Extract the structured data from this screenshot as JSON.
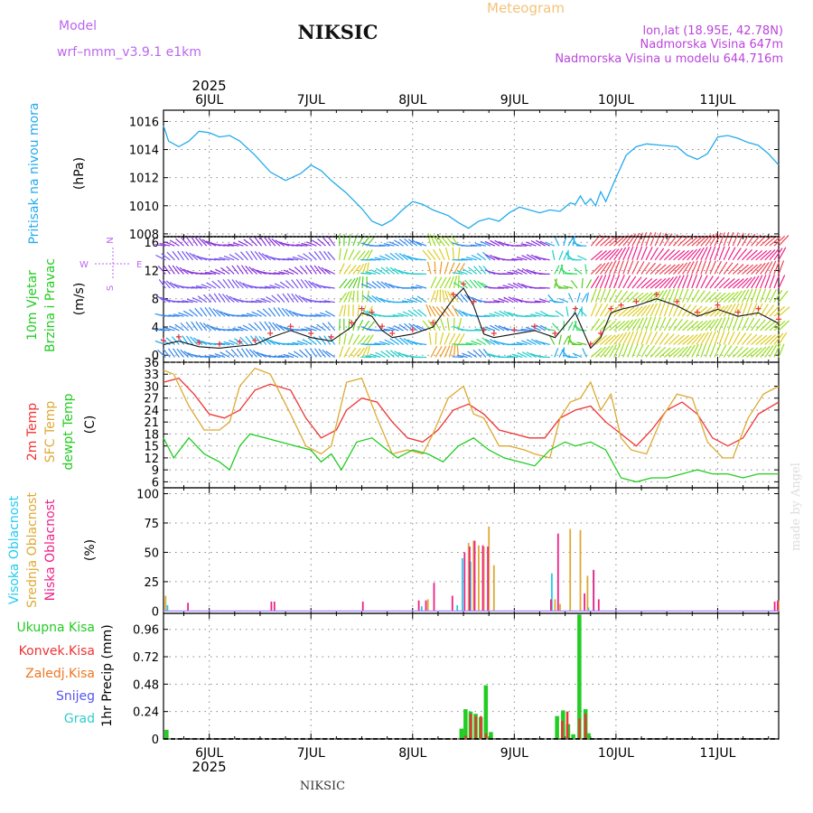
{
  "header": {
    "model_label": "Model",
    "model_name": "wrf–nmm_v3.9.1  e1km",
    "station": "NIKSIC",
    "product": "Meteogram",
    "coords": "lon,lat (18.95E, 42.78N)",
    "elevation": "Nadmorska Visina 647m",
    "model_elevation": "Nadmorska Visina u modelu 644.716m"
  },
  "time_axis": {
    "year": "2025",
    "day_labels": [
      "6JUL",
      "7JUL",
      "8JUL",
      "9JUL",
      "10JUL",
      "11JUL"
    ],
    "x_range_days": [
      0.55,
      6.6
    ]
  },
  "footer": {
    "station": "NIKSIC",
    "watermark": "made by Angel"
  },
  "colors": {
    "pressure": "#22aaee",
    "temp2m": "#ee3333",
    "sfc": "#ddaa33",
    "dewpt": "#22cc22",
    "high_cloud": "#22ccee",
    "mid_cloud": "#ddaa33",
    "low_cloud": "#ee2288",
    "total_precip": "#22cc22",
    "convective": "#ee3333",
    "frozen": "#ee7722",
    "snow": "#5555ee",
    "hail": "#33cccc"
  },
  "chart_data": [
    {
      "id": "pressure",
      "type": "line",
      "title": "",
      "labels": [
        "Pritisak na nivou mora"
      ],
      "unit": "(hPa)",
      "ylim": [
        1007.8,
        1016.8
      ],
      "yticks": [
        1008,
        1010,
        1012,
        1014,
        1016
      ],
      "grid": true,
      "series": [
        {
          "x": [
            0.55,
            0.6,
            0.7,
            0.8,
            0.9,
            1.0,
            1.1,
            1.2,
            1.3,
            1.45,
            1.6,
            1.75,
            1.9,
            2.0,
            2.1,
            2.2,
            2.35,
            2.5,
            2.6,
            2.7,
            2.8,
            2.9,
            3.0,
            3.1,
            3.2,
            3.35,
            3.45,
            3.55,
            3.65,
            3.75,
            3.85,
            3.95,
            4.05,
            4.15,
            4.25,
            4.35,
            4.45,
            4.55,
            4.6,
            4.65,
            4.7,
            4.75,
            4.8,
            4.85,
            4.9,
            5.0,
            5.1,
            5.2,
            5.3,
            5.45,
            5.6,
            5.7,
            5.8,
            5.9,
            6.0,
            6.1,
            6.2,
            6.3,
            6.4,
            6.5,
            6.6
          ],
          "y": [
            1015.7,
            1014.6,
            1014.2,
            1014.6,
            1015.3,
            1015.2,
            1014.9,
            1015.0,
            1014.6,
            1013.6,
            1012.4,
            1011.8,
            1012.3,
            1012.9,
            1012.5,
            1011.8,
            1010.9,
            1009.8,
            1008.9,
            1008.6,
            1009.0,
            1009.7,
            1010.3,
            1010.1,
            1009.7,
            1009.3,
            1008.8,
            1008.4,
            1008.9,
            1009.1,
            1008.9,
            1009.5,
            1009.9,
            1009.7,
            1009.5,
            1009.7,
            1009.6,
            1010.2,
            1010.1,
            1010.7,
            1010.1,
            1010.5,
            1010.0,
            1011.0,
            1010.3,
            1012.0,
            1013.6,
            1014.2,
            1014.4,
            1014.3,
            1014.2,
            1013.6,
            1013.3,
            1013.7,
            1014.9,
            1015.0,
            1014.8,
            1014.5,
            1014.3,
            1013.7,
            1012.9
          ]
        }
      ]
    },
    {
      "id": "wind",
      "type": "line",
      "title": "",
      "labels": [
        "10m Vjetar",
        "Brzina i Pravac"
      ],
      "unit": "(m/s)",
      "compass": {
        "north": "N",
        "west": "W",
        "east": "E",
        "south": "S"
      },
      "ylim": [
        -1,
        16.8
      ],
      "yticks": [
        0,
        4,
        8,
        12,
        16
      ],
      "yticklabels": [
        "0",
        "4",
        "8",
        "12",
        "16"
      ],
      "grid": true,
      "barb_levels": [
        15.5,
        13.5,
        11.5,
        9.5,
        7.5,
        5.5,
        3.5,
        1.5,
        -0.3
      ],
      "series": [
        {
          "name": "",
          "x": [
            0.55,
            0.7,
            0.9,
            1.1,
            1.3,
            1.45,
            1.6,
            1.8,
            2.0,
            2.2,
            2.4,
            2.5,
            2.6,
            2.7,
            2.8,
            3.0,
            3.2,
            3.4,
            3.5,
            3.6,
            3.7,
            3.8,
            4.0,
            4.2,
            4.4,
            4.6,
            4.75,
            4.85,
            4.95,
            5.05,
            5.2,
            5.4,
            5.6,
            5.8,
            6.0,
            6.2,
            6.4,
            6.6
          ],
          "y": [
            1.5,
            2.0,
            1.2,
            1.0,
            1.3,
            1.5,
            2.5,
            3.5,
            2.5,
            2.0,
            4.0,
            6.0,
            5.5,
            3.5,
            2.5,
            3.0,
            4.0,
            8.0,
            9.5,
            7.0,
            3.0,
            2.5,
            3.0,
            3.5,
            2.5,
            6.0,
            1.0,
            2.5,
            6.0,
            6.5,
            7.0,
            8.0,
            7.0,
            5.5,
            6.5,
            5.5,
            6.0,
            4.5
          ]
        }
      ]
    },
    {
      "id": "temperature",
      "type": "line",
      "title": "",
      "labels": [
        "2m Temp",
        "SFC Temp",
        "dewpt Temp"
      ],
      "unit": "(C)",
      "ylim": [
        4.5,
        36
      ],
      "yticks": [
        6,
        9,
        12,
        15,
        18,
        21,
        24,
        27,
        30,
        33,
        36
      ],
      "grid": true,
      "series": [
        {
          "name": "2m Temp",
          "x": [
            0.55,
            0.7,
            0.85,
            1.0,
            1.15,
            1.3,
            1.45,
            1.6,
            1.8,
            1.95,
            2.1,
            2.25,
            2.35,
            2.5,
            2.65,
            2.8,
            2.95,
            3.1,
            3.25,
            3.4,
            3.55,
            3.7,
            3.85,
            4.0,
            4.15,
            4.3,
            4.45,
            4.6,
            4.75,
            4.9,
            5.05,
            5.2,
            5.35,
            5.5,
            5.65,
            5.8,
            5.95,
            6.1,
            6.25,
            6.4,
            6.6
          ],
          "y": [
            31,
            32,
            28,
            23,
            22,
            24,
            29,
            30.5,
            29,
            22,
            17,
            19,
            24,
            27,
            26,
            21,
            17,
            16,
            19,
            24,
            25.5,
            23,
            19,
            18,
            17,
            17,
            22,
            24,
            25,
            21,
            18,
            15,
            19,
            24,
            26,
            23,
            17,
            15,
            17,
            23,
            26
          ]
        },
        {
          "name": "SFC Temp",
          "x": [
            0.55,
            0.65,
            0.8,
            0.95,
            1.1,
            1.2,
            1.3,
            1.45,
            1.6,
            1.8,
            1.95,
            2.1,
            2.2,
            2.35,
            2.5,
            2.65,
            2.8,
            2.95,
            3.1,
            3.2,
            3.35,
            3.5,
            3.6,
            3.7,
            3.85,
            3.95,
            4.1,
            4.2,
            4.35,
            4.45,
            4.55,
            4.65,
            4.75,
            4.85,
            4.95,
            5.05,
            5.15,
            5.3,
            5.45,
            5.6,
            5.75,
            5.9,
            6.05,
            6.15,
            6.3,
            6.45,
            6.6
          ],
          "y": [
            34,
            33,
            25,
            19,
            19,
            21,
            30,
            34.5,
            33,
            23,
            15,
            13,
            15,
            31,
            32,
            22,
            13,
            14,
            13,
            18,
            27,
            30,
            23,
            22,
            15,
            15,
            14,
            13,
            12,
            22,
            26,
            27,
            31,
            24,
            28,
            17,
            14,
            13,
            22,
            28,
            27,
            16,
            12,
            12,
            22,
            28,
            30
          ]
        },
        {
          "name": "dewpt Temp",
          "x": [
            0.55,
            0.65,
            0.8,
            0.95,
            1.1,
            1.2,
            1.3,
            1.4,
            1.55,
            1.7,
            1.85,
            2.0,
            2.1,
            2.2,
            2.3,
            2.45,
            2.6,
            2.7,
            2.85,
            3.0,
            3.15,
            3.3,
            3.45,
            3.6,
            3.75,
            3.9,
            4.05,
            4.2,
            4.35,
            4.5,
            4.6,
            4.75,
            4.9,
            5.05,
            5.2,
            5.35,
            5.5,
            5.65,
            5.8,
            5.95,
            6.1,
            6.25,
            6.4,
            6.6
          ],
          "y": [
            17,
            12,
            17,
            13,
            11,
            9,
            15,
            18,
            17,
            16,
            15,
            14,
            11,
            13,
            9,
            16,
            17,
            15,
            12,
            14,
            13,
            11,
            15,
            17,
            14,
            12,
            11,
            10,
            14,
            16,
            15,
            16,
            14,
            7,
            6,
            7,
            7,
            8,
            9,
            8,
            8,
            7,
            8,
            8
          ]
        }
      ]
    },
    {
      "id": "cloud",
      "type": "bar",
      "title": "",
      "labels": [
        "Visoka Oblacnost",
        "Srednja Oblacnost",
        "Niska Oblacnost"
      ],
      "unit": "(%)",
      "ylim": [
        -2,
        105
      ],
      "yticks": [
        0,
        25,
        50,
        75,
        100
      ],
      "grid": true,
      "series": [
        {
          "name": "Visoka Oblacnost",
          "x": [
            0.6,
            3.1,
            3.45,
            3.5,
            3.58,
            4.38,
            4.74,
            4.79
          ],
          "values": [
            5,
            4,
            5,
            45,
            42,
            32,
            3,
            35
          ]
        },
        {
          "name": "Srednja Oblacnost",
          "x": [
            0.57,
            3.15,
            3.55,
            3.6,
            3.65,
            3.7,
            3.75,
            3.8,
            4.4,
            4.45,
            4.55,
            4.65,
            4.72,
            6.6
          ],
          "values": [
            13,
            10,
            58,
            60,
            56,
            55,
            72,
            39,
            10,
            6,
            70,
            69,
            30,
            9
          ]
        },
        {
          "name": "Niska Oblacnost",
          "x": [
            0.78,
            1.6,
            1.63,
            2.5,
            3.05,
            3.12,
            3.2,
            3.38,
            3.5,
            3.55,
            3.6,
            3.68,
            3.73,
            4.35,
            4.42,
            4.68,
            4.77,
            4.82,
            6.55,
            6.58
          ],
          "values": [
            7,
            8,
            8,
            8,
            9,
            9,
            24,
            13,
            50,
            55,
            60,
            56,
            55,
            10,
            66,
            15,
            35,
            10,
            8,
            9
          ]
        }
      ]
    },
    {
      "id": "precip",
      "type": "bar",
      "title": "",
      "labels": [
        "Ukupna Kisa",
        "Konvek.Kisa",
        "Zaledj.Kisa",
        "Snijeg",
        "Grad"
      ],
      "unit": "1hr Precip (mm)",
      "ylim": [
        0,
        1.1
      ],
      "yticks": [
        0,
        0.24,
        0.48,
        0.72,
        0.96
      ],
      "yticklabels": [
        "0",
        "0.24",
        "0.48",
        "0.72",
        "0.96"
      ],
      "grid": true,
      "series": [
        {
          "name": "Ukupna Kisa",
          "x": [
            0.58,
            3.48,
            3.52,
            3.57,
            3.62,
            3.67,
            3.72,
            3.77,
            4.42,
            4.48,
            4.53,
            4.58,
            4.64,
            4.7,
            4.73
          ],
          "values": [
            0.08,
            0.09,
            0.26,
            0.24,
            0.22,
            0.19,
            0.47,
            0.06,
            0.2,
            0.25,
            0.13,
            0.04,
            1.09,
            0.26,
            0.05
          ]
        },
        {
          "name": "Konvek.Kisa",
          "x": [
            3.5,
            3.55,
            3.6,
            3.65,
            3.7,
            4.45,
            4.5,
            4.62,
            4.68
          ],
          "values": [
            0.03,
            0.22,
            0.2,
            0.2,
            0.05,
            0.16,
            0.24,
            0.18,
            0.22
          ]
        }
      ]
    }
  ]
}
